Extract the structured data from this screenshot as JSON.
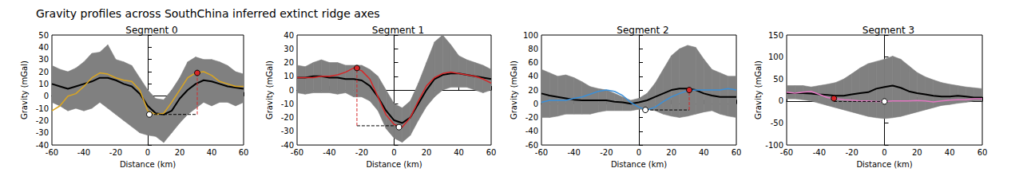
{
  "title": "Gravity profiles across SouthChina inferred extinct ridge axes",
  "chart_data": [
    {
      "type": "line",
      "title": "Segment 0",
      "x_label": "Distance (km)",
      "y_label": "Gravity (mGal)",
      "xlim": [
        -60,
        60
      ],
      "xticks": [
        -60,
        -40,
        -20,
        0,
        20,
        40,
        60
      ],
      "ylim": [
        -40,
        50
      ],
      "yticks": [
        -40,
        -30,
        -20,
        -10,
        0,
        10,
        20,
        30,
        40,
        50
      ],
      "grid": false,
      "x": [
        -60,
        -55,
        -50,
        -45,
        -40,
        -35,
        -30,
        -25,
        -20,
        -15,
        -10,
        -5,
        0,
        5,
        10,
        15,
        20,
        25,
        30,
        35,
        40,
        45,
        50,
        55,
        60
      ],
      "series": [
        {
          "type": "band",
          "color": "#808080",
          "lower": [
            -5,
            -8,
            -12,
            -10,
            -12,
            -10,
            -5,
            -10,
            -15,
            -20,
            -25,
            -30,
            -32,
            -33,
            -38,
            -30,
            -22,
            -15,
            -10,
            -5,
            -8,
            -5,
            -5,
            -8,
            -5
          ],
          "upper": [
            25,
            22,
            20,
            23,
            28,
            35,
            36,
            42,
            30,
            28,
            25,
            15,
            5,
            -2,
            -3,
            5,
            15,
            28,
            32,
            30,
            30,
            28,
            25,
            20,
            18
          ]
        },
        {
          "type": "line",
          "color": "#000000",
          "values": [
            10,
            8,
            6,
            8,
            10,
            12,
            15,
            15,
            13,
            10,
            8,
            2,
            -8,
            -14,
            -15,
            -12,
            -2,
            5,
            10,
            13,
            12,
            10,
            8,
            7,
            6
          ]
        },
        {
          "type": "line",
          "color": "#daa520",
          "values": [
            -12,
            -8,
            0,
            2,
            8,
            15,
            19,
            18,
            15,
            13,
            12,
            5,
            -12,
            -15,
            -14,
            -5,
            5,
            15,
            19,
            20,
            17,
            12,
            10,
            8,
            8
          ]
        },
        {
          "type": "line",
          "line_style": "dashed",
          "color": "#000000",
          "x": [
            1,
            31
          ],
          "values": [
            -15,
            -15
          ]
        },
        {
          "type": "line",
          "line_style": "dashed",
          "color": "#d62728",
          "x": [
            31,
            31
          ],
          "values": [
            -15,
            19
          ]
        },
        {
          "type": "scatter",
          "marker": "circle",
          "color": "#d62728",
          "x": [
            31
          ],
          "values": [
            19
          ]
        },
        {
          "type": "scatter",
          "marker": "circle",
          "color": "#ffffff",
          "x": [
            1
          ],
          "values": [
            -15
          ]
        }
      ]
    },
    {
      "type": "line",
      "title": "Segment 1",
      "x_label": "Distance (km)",
      "y_label": "Gravity (mGal)",
      "xlim": [
        -60,
        60
      ],
      "xticks": [
        -60,
        -40,
        -20,
        0,
        20,
        40,
        60
      ],
      "ylim": [
        -40,
        40
      ],
      "yticks": [
        -40,
        -30,
        -20,
        -10,
        0,
        10,
        20,
        30,
        40
      ],
      "grid": false,
      "x": [
        -60,
        -55,
        -50,
        -45,
        -40,
        -35,
        -30,
        -25,
        -20,
        -15,
        -10,
        -5,
        0,
        5,
        10,
        15,
        20,
        25,
        30,
        35,
        40,
        45,
        50,
        55,
        60
      ],
      "series": [
        {
          "type": "band",
          "color": "#808080",
          "lower": [
            -2,
            -3,
            -2,
            -2,
            -2,
            -3,
            -2,
            -5,
            -5,
            -8,
            -15,
            -28,
            -35,
            -38,
            -33,
            -22,
            -12,
            -5,
            0,
            2,
            2,
            2,
            0,
            -2,
            0
          ],
          "upper": [
            18,
            17,
            20,
            22,
            20,
            20,
            18,
            18,
            18,
            15,
            10,
            0,
            -10,
            -13,
            -8,
            5,
            20,
            35,
            40,
            33,
            25,
            22,
            20,
            18,
            15
          ]
        },
        {
          "type": "line",
          "color": "#000000",
          "values": [
            9,
            9,
            10,
            10,
            9,
            9,
            8,
            8,
            7,
            3,
            -5,
            -15,
            -22,
            -24,
            -20,
            -10,
            0,
            8,
            11,
            12,
            12,
            11,
            10,
            9,
            8
          ]
        },
        {
          "type": "line",
          "color": "#d62728",
          "values": [
            9,
            9,
            9,
            10,
            10,
            11,
            13,
            16,
            14,
            8,
            -5,
            -18,
            -25,
            -27,
            -20,
            -8,
            3,
            9,
            12,
            13,
            12,
            11,
            10,
            8,
            5
          ]
        },
        {
          "type": "line",
          "line_style": "dashed",
          "color": "#000000",
          "x": [
            -23,
            3
          ],
          "values": [
            -26,
            -26
          ]
        },
        {
          "type": "line",
          "line_style": "dashed",
          "color": "#d62728",
          "x": [
            -23,
            -23
          ],
          "values": [
            -26,
            16
          ]
        },
        {
          "type": "scatter",
          "marker": "circle",
          "color": "#d62728",
          "x": [
            -23
          ],
          "values": [
            16
          ]
        },
        {
          "type": "scatter",
          "marker": "circle",
          "color": "#ffffff",
          "x": [
            3
          ],
          "values": [
            -27
          ]
        }
      ]
    },
    {
      "type": "line",
      "title": "Segment 2",
      "x_label": "Distance (km)",
      "y_label": "Gravity (mGal)",
      "xlim": [
        -60,
        60
      ],
      "xticks": [
        -60,
        -40,
        -20,
        0,
        20,
        40,
        60
      ],
      "ylim": [
        -60,
        100
      ],
      "yticks": [
        -60,
        -40,
        -20,
        0,
        20,
        40,
        60,
        80,
        100
      ],
      "grid": false,
      "x": [
        -60,
        -55,
        -50,
        -45,
        -40,
        -35,
        -30,
        -25,
        -20,
        -15,
        -10,
        -5,
        0,
        5,
        10,
        15,
        20,
        25,
        30,
        35,
        40,
        45,
        50,
        55,
        60
      ],
      "series": [
        {
          "type": "band",
          "color": "#808080",
          "lower": [
            -20,
            -20,
            -18,
            -15,
            -15,
            -15,
            -15,
            -12,
            -10,
            -10,
            -10,
            -10,
            -8,
            -8,
            -10,
            -15,
            -18,
            -20,
            -18,
            -15,
            -12,
            -10,
            -15,
            -18,
            -20
          ],
          "upper": [
            50,
            45,
            40,
            42,
            38,
            32,
            25,
            22,
            20,
            15,
            10,
            5,
            8,
            15,
            30,
            50,
            70,
            80,
            85,
            82,
            65,
            50,
            45,
            40,
            40
          ]
        },
        {
          "type": "line",
          "color": "#000000",
          "values": [
            15,
            12,
            10,
            8,
            6,
            5,
            5,
            5,
            5,
            3,
            2,
            0,
            2,
            5,
            10,
            15,
            20,
            22,
            22,
            20,
            15,
            12,
            10,
            10,
            10
          ]
        },
        {
          "type": "line",
          "color": "#3a8fd8",
          "values": [
            2,
            5,
            5,
            5,
            8,
            10,
            14,
            18,
            20,
            18,
            12,
            2,
            -5,
            -9,
            -5,
            3,
            10,
            15,
            19,
            20,
            20,
            20,
            20,
            22,
            20
          ]
        },
        {
          "type": "line",
          "line_style": "dashed",
          "color": "#000000",
          "x": [
            4,
            31
          ],
          "values": [
            -9,
            -9
          ]
        },
        {
          "type": "line",
          "line_style": "dashed",
          "color": "#d62728",
          "x": [
            31,
            31
          ],
          "values": [
            -9,
            20
          ]
        },
        {
          "type": "scatter",
          "marker": "circle",
          "color": "#d62728",
          "x": [
            31
          ],
          "values": [
            20
          ]
        },
        {
          "type": "scatter",
          "marker": "circle",
          "color": "#ffffff",
          "x": [
            4
          ],
          "values": [
            -9
          ]
        }
      ]
    },
    {
      "type": "line",
      "title": "Segment 3",
      "x_label": "Distance (km)",
      "y_label": "Gravity (mGal)",
      "xlim": [
        -60,
        60
      ],
      "xticks": [
        -60,
        -40,
        -20,
        0,
        20,
        40,
        60
      ],
      "ylim": [
        -100,
        150
      ],
      "yticks": [
        -100,
        -50,
        0,
        50,
        100,
        150
      ],
      "grid": false,
      "x": [
        -60,
        -55,
        -50,
        -45,
        -40,
        -35,
        -30,
        -25,
        -20,
        -15,
        -10,
        -5,
        0,
        5,
        10,
        15,
        20,
        25,
        30,
        35,
        40,
        45,
        50,
        55,
        60
      ],
      "series": [
        {
          "type": "band",
          "color": "#808080",
          "lower": [
            5,
            5,
            3,
            0,
            -5,
            -10,
            -15,
            -20,
            -25,
            -30,
            -35,
            -38,
            -40,
            -38,
            -35,
            -30,
            -25,
            -20,
            -15,
            -10,
            -8,
            -5,
            -3,
            0,
            0
          ],
          "upper": [
            35,
            35,
            35,
            32,
            35,
            38,
            42,
            50,
            62,
            75,
            85,
            90,
            95,
            102,
            95,
            80,
            65,
            55,
            48,
            42,
            38,
            35,
            32,
            30,
            28
          ]
        },
        {
          "type": "line",
          "color": "#000000",
          "values": [
            18,
            18,
            18,
            17,
            15,
            14,
            12,
            12,
            15,
            18,
            20,
            28,
            32,
            35,
            30,
            22,
            18,
            15,
            12,
            10,
            10,
            12,
            10,
            8,
            8
          ]
        },
        {
          "type": "line",
          "color": "#e377c2",
          "values": [
            20,
            18,
            20,
            22,
            15,
            8,
            5,
            3,
            2,
            0,
            0,
            -1,
            -1,
            0,
            0,
            0,
            1,
            0,
            -2,
            0,
            2,
            3,
            3,
            5,
            5
          ]
        },
        {
          "type": "line",
          "line_style": "dashed",
          "color": "#000000",
          "x": [
            -31,
            0
          ],
          "values": [
            -1,
            -1
          ]
        },
        {
          "type": "line",
          "line_style": "dashed",
          "color": "#d62728",
          "x": [
            -31,
            -31
          ],
          "values": [
            -1,
            6
          ]
        },
        {
          "type": "scatter",
          "marker": "circle",
          "color": "#d62728",
          "x": [
            -31
          ],
          "values": [
            6
          ]
        },
        {
          "type": "scatter",
          "marker": "circle",
          "color": "#ffffff",
          "x": [
            0
          ],
          "values": [
            -1
          ]
        }
      ]
    }
  ]
}
